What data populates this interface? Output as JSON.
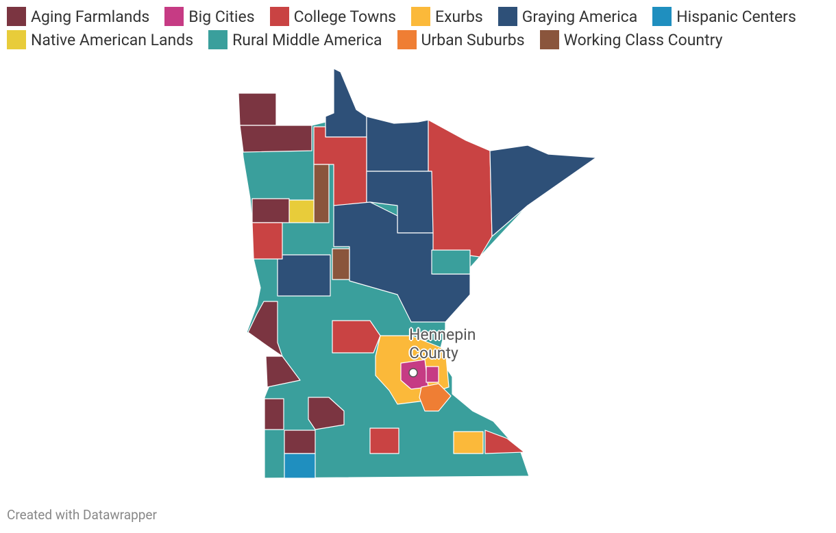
{
  "legend": [
    {
      "label": "Aging Farmlands",
      "color": "#7b3541"
    },
    {
      "label": "Big Cities",
      "color": "#c63b84"
    },
    {
      "label": "College Towns",
      "color": "#c94343"
    },
    {
      "label": "Exurbs",
      "color": "#fbb93a"
    },
    {
      "label": "Graying America",
      "color": "#2e5078"
    },
    {
      "label": "Hispanic Centers",
      "color": "#1f8fbf"
    },
    {
      "label": "Native American Lands",
      "color": "#e8cc3a"
    },
    {
      "label": "Rural Middle America",
      "color": "#3a9f9c"
    },
    {
      "label": "Urban Suburbs",
      "color": "#ef7e34"
    },
    {
      "label": "Working Class Country",
      "color": "#8a553c"
    }
  ],
  "annotation": "Hennepin County",
  "footer": "Created with Datawrapper"
}
